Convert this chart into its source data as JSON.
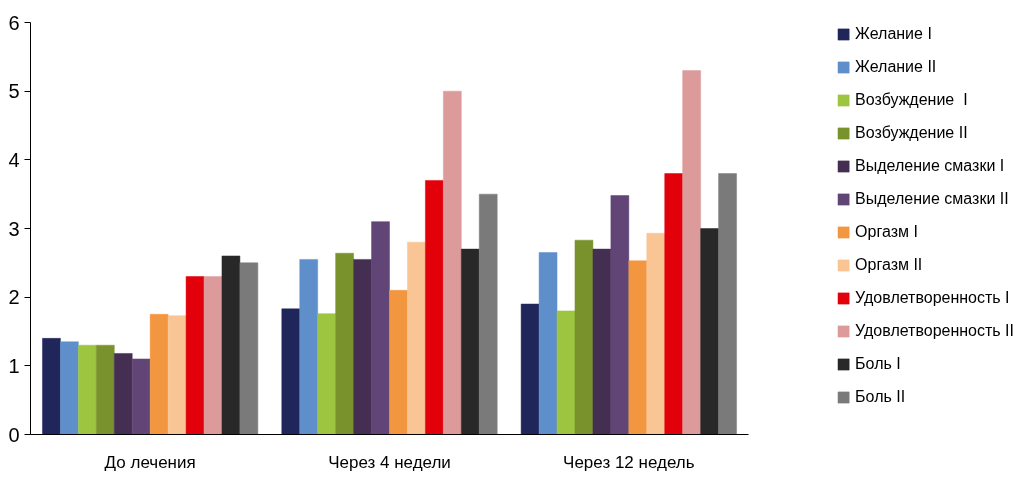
{
  "chart_data": {
    "type": "bar",
    "categories": [
      "До лечения",
      "Через 4 недели",
      "Через 12 недель"
    ],
    "ylim": [
      0,
      6
    ],
    "yticks": [
      0,
      1,
      2,
      3,
      4,
      5,
      6
    ],
    "grid": false,
    "legend": "right",
    "series": [
      {
        "name": "Желание I",
        "color": "#20265a",
        "values": [
          1.4,
          1.83,
          1.9
        ]
      },
      {
        "name": "Желание II",
        "color": "#5f8fca",
        "values": [
          1.35,
          2.55,
          2.65
        ]
      },
      {
        "name": "Возбуждение  I",
        "color": "#9dc540",
        "values": [
          1.3,
          1.76,
          1.8
        ]
      },
      {
        "name": "Возбуждение II",
        "color": "#79922b",
        "values": [
          1.3,
          2.64,
          2.83
        ]
      },
      {
        "name": "Выделение смазки I",
        "color": "#442f52",
        "values": [
          1.18,
          2.55,
          2.7
        ]
      },
      {
        "name": "Выделение смазки II",
        "color": "#614576",
        "values": [
          1.1,
          3.1,
          3.48
        ]
      },
      {
        "name": "Оргазм I",
        "color": "#f39640",
        "values": [
          1.75,
          2.1,
          2.53
        ]
      },
      {
        "name": "Оргазм II",
        "color": "#f9c594",
        "values": [
          1.73,
          2.8,
          2.93
        ]
      },
      {
        "name": "Удовлетворенность I",
        "color": "#e2000b",
        "values": [
          2.3,
          3.7,
          3.8
        ]
      },
      {
        "name": "Удовлетворенность II",
        "color": "#dd9a9a",
        "values": [
          2.3,
          5.0,
          5.3
        ]
      },
      {
        "name": "Боль I",
        "color": "#282828",
        "values": [
          2.6,
          2.7,
          3.0
        ]
      },
      {
        "name": "Боль II",
        "color": "#7a7a7a",
        "values": [
          2.5,
          3.5,
          3.8
        ]
      }
    ]
  }
}
